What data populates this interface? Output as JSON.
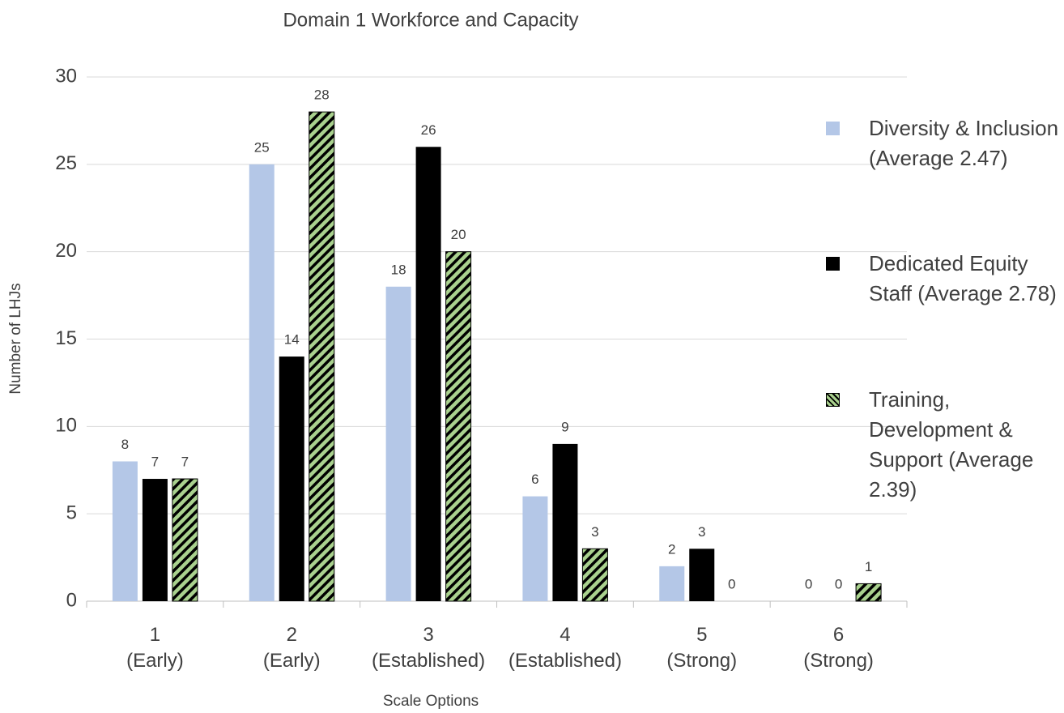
{
  "chart_data": {
    "type": "bar",
    "title": "Domain 1 Workforce and Capacity",
    "x_label": "Scale Options",
    "y_label": "Number of LHJs",
    "categories": [
      "1\n(Early)",
      "2\n(Early)",
      "3\n(Established)",
      "4\n(Established)",
      "5\n(Strong)",
      "6\n(Strong)"
    ],
    "series": [
      {
        "name": "Diversity & Inclusion (Average 2.47)",
        "color": "#b4c7e7",
        "values": [
          8,
          25,
          18,
          6,
          2,
          0
        ]
      },
      {
        "name": "Dedicated Equity Staff (Average 2.78)",
        "color": "#000000",
        "values": [
          7,
          14,
          26,
          9,
          3,
          0
        ]
      },
      {
        "name": "Training, Development & Support (Average 2.39)",
        "color": "#a9d18e",
        "pattern": "diagonal-stripes",
        "values": [
          7,
          28,
          20,
          3,
          0,
          1
        ]
      }
    ],
    "ylim": [
      0,
      30
    ],
    "yticks": [
      0,
      5,
      10,
      15,
      20,
      25,
      30
    ],
    "grid": true,
    "legend": "right"
  }
}
